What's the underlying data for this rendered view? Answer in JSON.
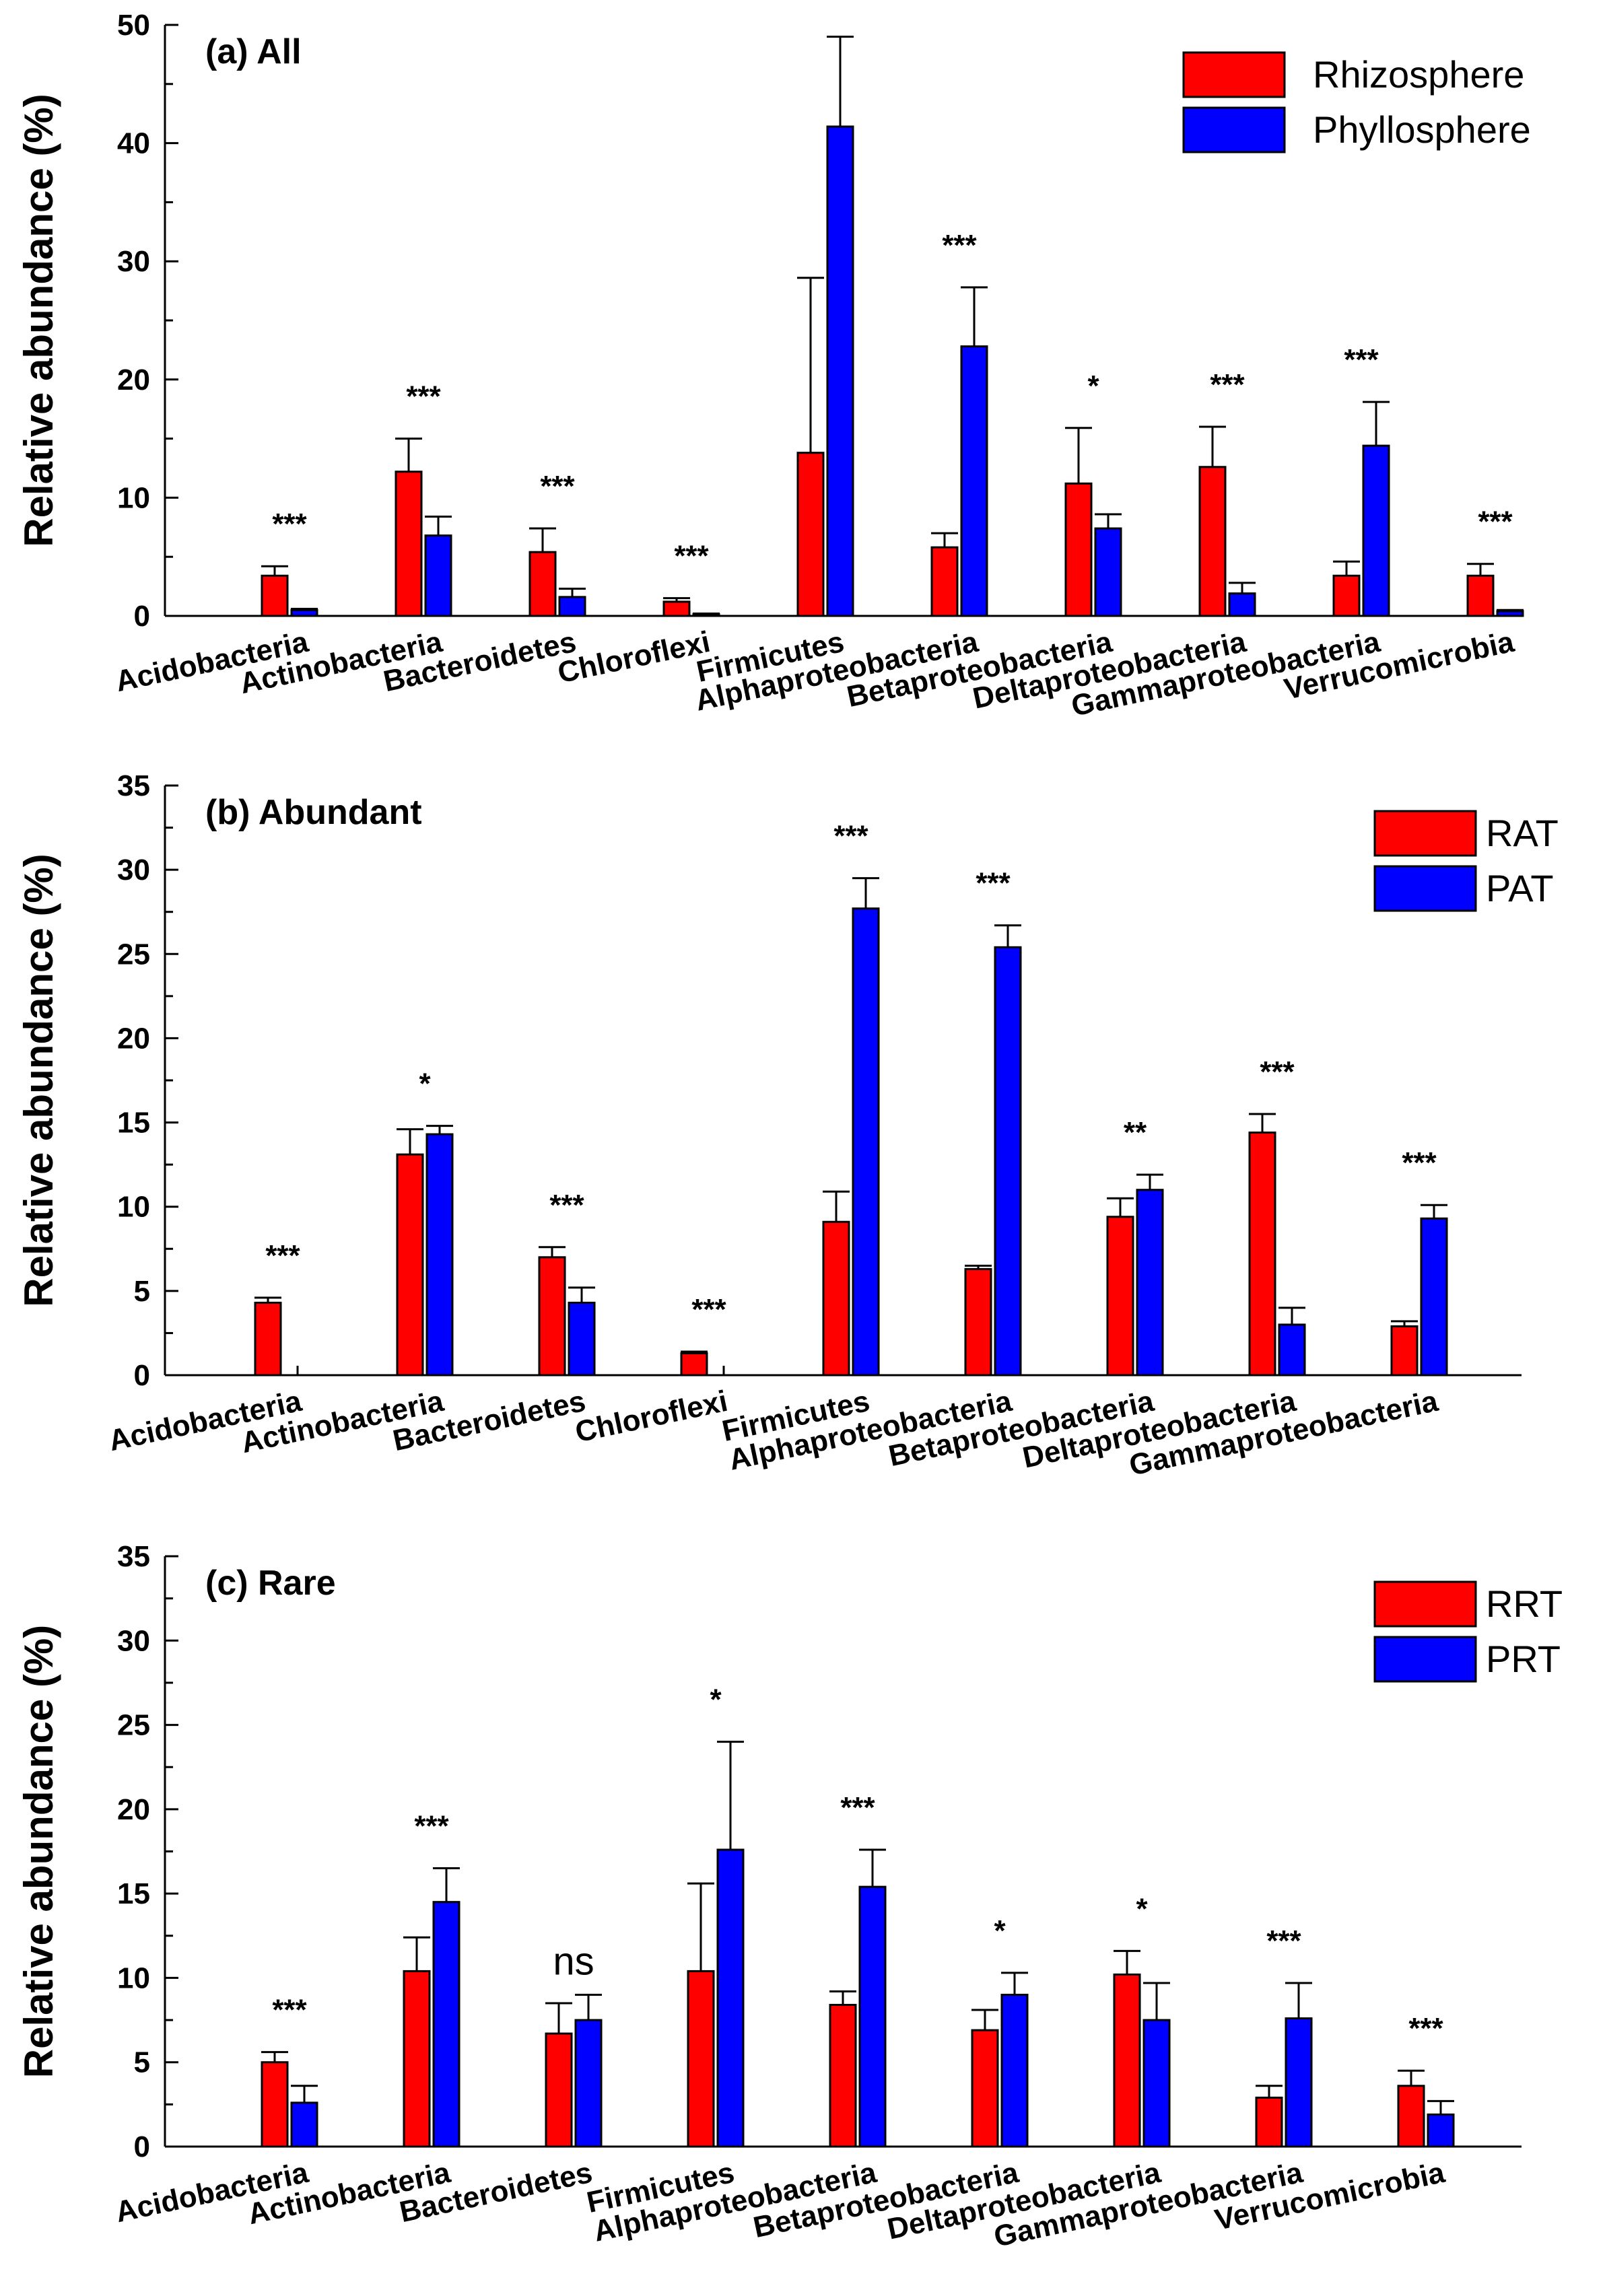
{
  "colors": {
    "red": "#ff0000",
    "blue": "#0000ff",
    "axis": "#000000"
  },
  "chart_data": [
    {
      "type": "bar",
      "title": "(a) All",
      "ylabel": "Relative abundance (%)",
      "xlabel": "",
      "ylim": [
        0,
        50
      ],
      "yticks": [
        0,
        10,
        20,
        30,
        40,
        50
      ],
      "tick_labels": [
        "0",
        "10",
        "20",
        "30",
        "40",
        "50"
      ],
      "legend_position": "top-right",
      "categories": [
        "Acidobacteria",
        "Actinobacteria",
        "Bacteroidetes",
        "Chloroflexi",
        "Firmicutes",
        "Alphaproteobacteria",
        "Betaproteobacteria",
        "Deltaproteobacteria",
        "Gammaproteobacteria",
        "Verrucomicrobia"
      ],
      "series": [
        {
          "name": "Rhizosphere",
          "color": "#ff0000",
          "values": [
            3.4,
            12.2,
            5.4,
            1.2,
            13.8,
            5.8,
            11.2,
            12.6,
            3.4,
            3.4
          ],
          "errors": [
            0.8,
            2.8,
            2.0,
            0.3,
            14.8,
            1.2,
            4.7,
            3.4,
            1.2,
            1.0
          ]
        },
        {
          "name": "Phyllosphere",
          "color": "#0000ff",
          "values": [
            0.5,
            6.8,
            1.6,
            0.15,
            41.4,
            22.8,
            7.4,
            1.9,
            14.4,
            0.4
          ],
          "errors": [
            0.1,
            1.6,
            0.7,
            0.05,
            7.6,
            5.0,
            1.2,
            0.9,
            3.7,
            0.1
          ]
        }
      ],
      "significance": [
        "***",
        "***",
        "***",
        "***",
        "***",
        "***",
        "*",
        "***",
        "***",
        "***"
      ]
    },
    {
      "type": "bar",
      "title": "(b) Abundant",
      "ylabel": "Relative abundance (%)",
      "xlabel": "",
      "ylim": [
        0,
        35
      ],
      "yticks": [
        0,
        5,
        10,
        15,
        20,
        25,
        30,
        35
      ],
      "tick_labels": [
        "0",
        "5",
        "10",
        "15",
        "20",
        "25",
        "30",
        "35"
      ],
      "legend_position": "top-right",
      "categories": [
        "Acidobacteria",
        "Actinobacteria",
        "Bacteroidetes",
        "Chloroflexi",
        "Firmicutes",
        "Alphaproteobacteria",
        "Betaproteobacteria",
        "Deltaproteobacteria",
        "Gammaproteobacteria"
      ],
      "series": [
        {
          "name": "RAT",
          "color": "#ff0000",
          "values": [
            4.3,
            13.1,
            7.0,
            1.3,
            9.1,
            6.3,
            9.4,
            14.4,
            2.9
          ],
          "errors": [
            0.3,
            1.5,
            0.6,
            0.1,
            1.8,
            0.2,
            1.1,
            1.1,
            0.3
          ]
        },
        {
          "name": "PAT",
          "color": "#0000ff",
          "values": [
            0,
            14.3,
            4.3,
            0,
            27.7,
            25.4,
            11.0,
            3.0,
            9.3
          ],
          "errors": [
            0,
            0.5,
            0.9,
            0,
            1.8,
            1.3,
            0.9,
            1.0,
            0.8
          ]
        }
      ],
      "significance": [
        "***",
        "*",
        "***",
        "***",
        "***",
        "***",
        "**",
        "***",
        "***"
      ]
    },
    {
      "type": "bar",
      "title": "(c) Rare",
      "ylabel": "Relative abundance (%)",
      "xlabel": "",
      "ylim": [
        0,
        35
      ],
      "yticks": [
        0,
        5,
        10,
        15,
        20,
        25,
        30,
        35
      ],
      "tick_labels": [
        "0",
        "5",
        "10",
        "15",
        "20",
        "25",
        "30",
        "35"
      ],
      "legend_position": "top-right",
      "categories": [
        "Acidobacteria",
        "Actinobacteria",
        "Bacteroidetes",
        "Firmicutes",
        "Alphaproteobacteria",
        "Betaproteobacteria",
        "Deltaproteobacteria",
        "Gammaproteobacteria",
        "Verrucomicrobia"
      ],
      "series": [
        {
          "name": "RRT",
          "color": "#ff0000",
          "values": [
            5.0,
            10.4,
            6.7,
            10.4,
            8.4,
            6.9,
            10.2,
            2.9,
            3.6
          ],
          "errors": [
            0.6,
            2.0,
            1.8,
            5.2,
            0.8,
            1.2,
            1.4,
            0.7,
            0.9
          ]
        },
        {
          "name": "PRT",
          "color": "#0000ff",
          "values": [
            2.6,
            14.5,
            7.5,
            17.6,
            15.4,
            9.0,
            7.5,
            7.6,
            1.9
          ],
          "errors": [
            1.0,
            2.0,
            1.5,
            6.4,
            2.2,
            1.3,
            2.2,
            2.1,
            0.8
          ]
        }
      ],
      "significance": [
        "***",
        "***",
        "ns",
        "*",
        "***",
        "*",
        "*",
        "***",
        "***"
      ]
    }
  ]
}
